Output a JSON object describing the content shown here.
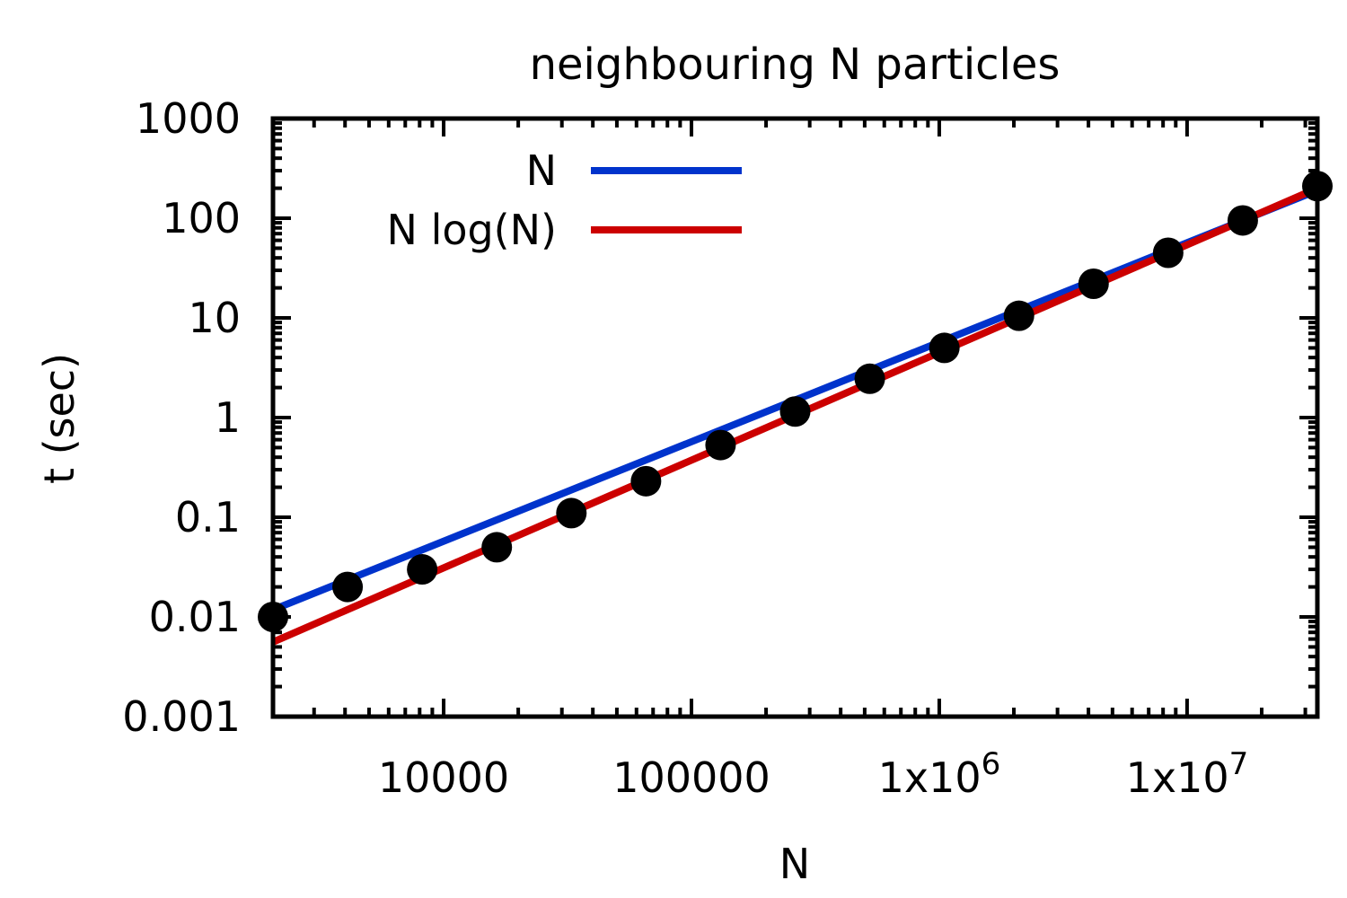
{
  "chart_data": {
    "type": "scatter",
    "title": "neighbouring N particles",
    "xlabel": "N",
    "ylabel": "t (sec)",
    "xscale": "log",
    "yscale": "log",
    "xlim": [
      2048,
      33554432
    ],
    "ylim": [
      0.001,
      1000
    ],
    "xticks": [
      {
        "value": 10000,
        "label": "10000"
      },
      {
        "value": 100000,
        "label": "100000"
      },
      {
        "value": 1000000,
        "label": "1x10",
        "exp": "6"
      },
      {
        "value": 10000000,
        "label": "1x10",
        "exp": "7"
      }
    ],
    "yticks": [
      {
        "value": 0.001,
        "label": "0.001"
      },
      {
        "value": 0.01,
        "label": "0.01"
      },
      {
        "value": 0.1,
        "label": "0.1"
      },
      {
        "value": 1,
        "label": "1"
      },
      {
        "value": 10,
        "label": "10"
      },
      {
        "value": 100,
        "label": "100"
      },
      {
        "value": 1000,
        "label": "1000"
      }
    ],
    "legend_position": "top-left",
    "points": {
      "color": "#000000",
      "x": [
        2048,
        4096,
        8192,
        16384,
        32768,
        65536,
        131072,
        262144,
        524288,
        1048576,
        2097152,
        4194304,
        8388608,
        16777216,
        33554432
      ],
      "y": [
        0.01,
        0.02,
        0.03,
        0.05,
        0.11,
        0.23,
        0.53,
        1.15,
        2.45,
        5.0,
        10.5,
        22,
        45,
        95,
        210
      ]
    },
    "series": [
      {
        "name": "N",
        "color": "#0033cc",
        "x": [
          2048,
          33554432
        ],
        "y": [
          0.0118,
          190
        ]
      },
      {
        "name": "N log(N)",
        "color": "#cc0000",
        "x": [
          2048,
          33554432
        ],
        "y": [
          0.0056,
          200
        ]
      }
    ]
  }
}
